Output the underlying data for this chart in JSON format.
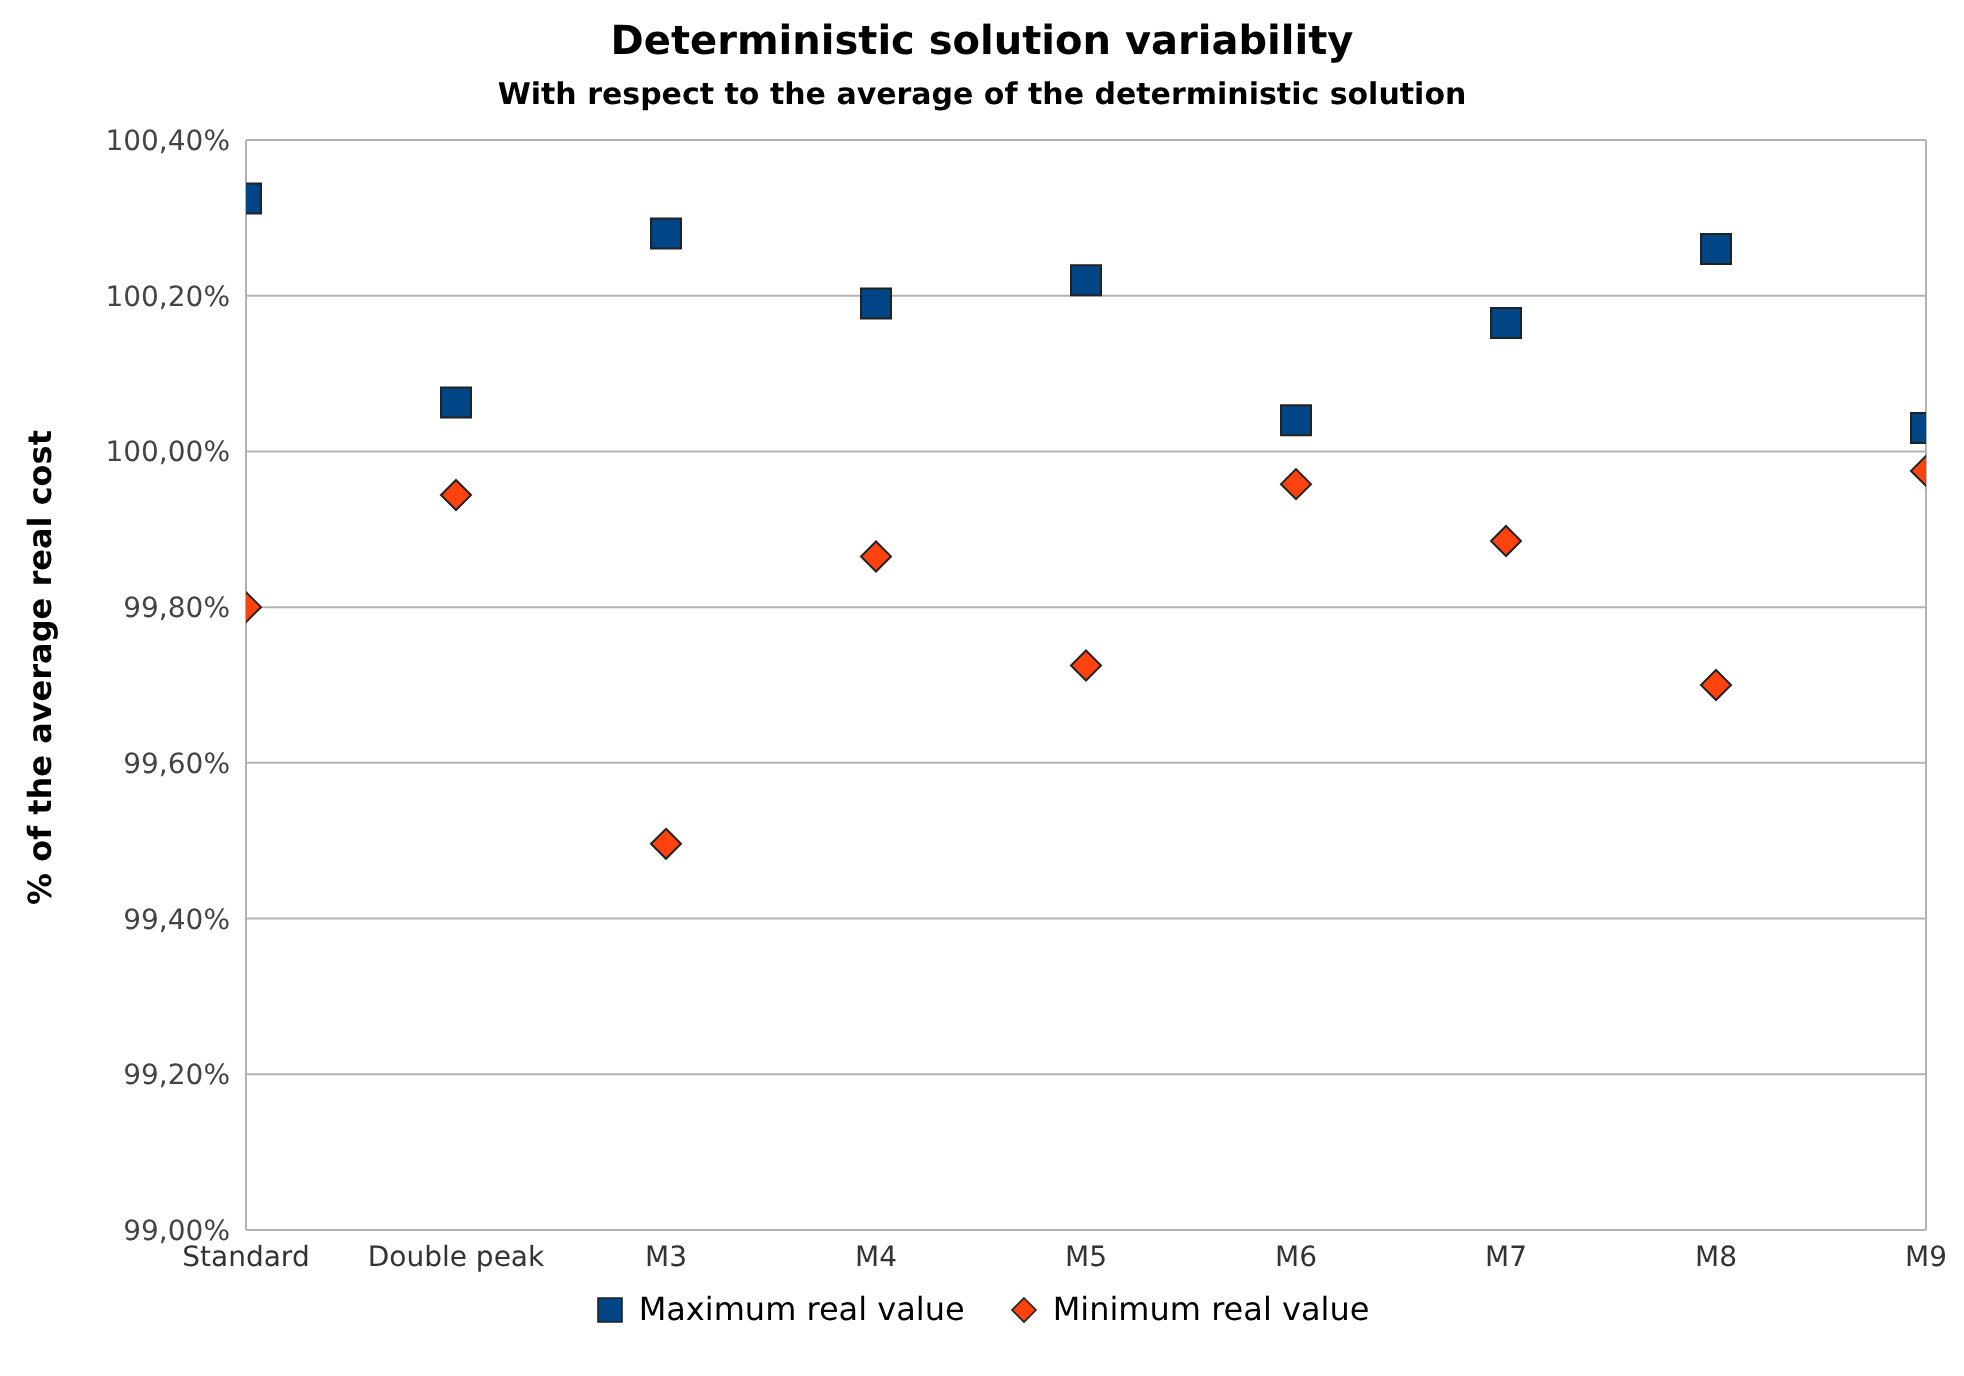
{
  "chart_data": {
    "type": "scatter",
    "title": "Deterministic solution variability",
    "subtitle": "With respect to the average of the deterministic solution",
    "ylabel": "% of the average real cost",
    "categories": [
      "Standard",
      "Double peak",
      "M3",
      "M4",
      "M5",
      "M6",
      "M7",
      "M8",
      "M9"
    ],
    "series": [
      {
        "name": "Maximum real value",
        "color": "#004586",
        "marker": "square",
        "values": [
          100.325,
          100.063,
          100.28,
          100.19,
          100.22,
          100.04,
          100.165,
          100.26,
          100.03
        ]
      },
      {
        "name": "Minimum real value",
        "color": "#ff420e",
        "marker": "diamond",
        "values": [
          99.8,
          99.944,
          99.496,
          99.865,
          99.725,
          99.958,
          99.885,
          99.7,
          99.975
        ]
      }
    ],
    "ylim": [
      99.0,
      100.4
    ],
    "yticks": [
      {
        "value": 99.0,
        "label": "99,00%"
      },
      {
        "value": 99.2,
        "label": "99,20%"
      },
      {
        "value": 99.4,
        "label": "99,40%"
      },
      {
        "value": 99.6,
        "label": "99,60%"
      },
      {
        "value": 99.8,
        "label": "99,80%"
      },
      {
        "value": 100.0,
        "label": "100,00%"
      },
      {
        "value": 100.2,
        "label": "100,20%"
      },
      {
        "value": 100.4,
        "label": "100,40%"
      }
    ],
    "grid": "y",
    "legend": "bottom"
  }
}
